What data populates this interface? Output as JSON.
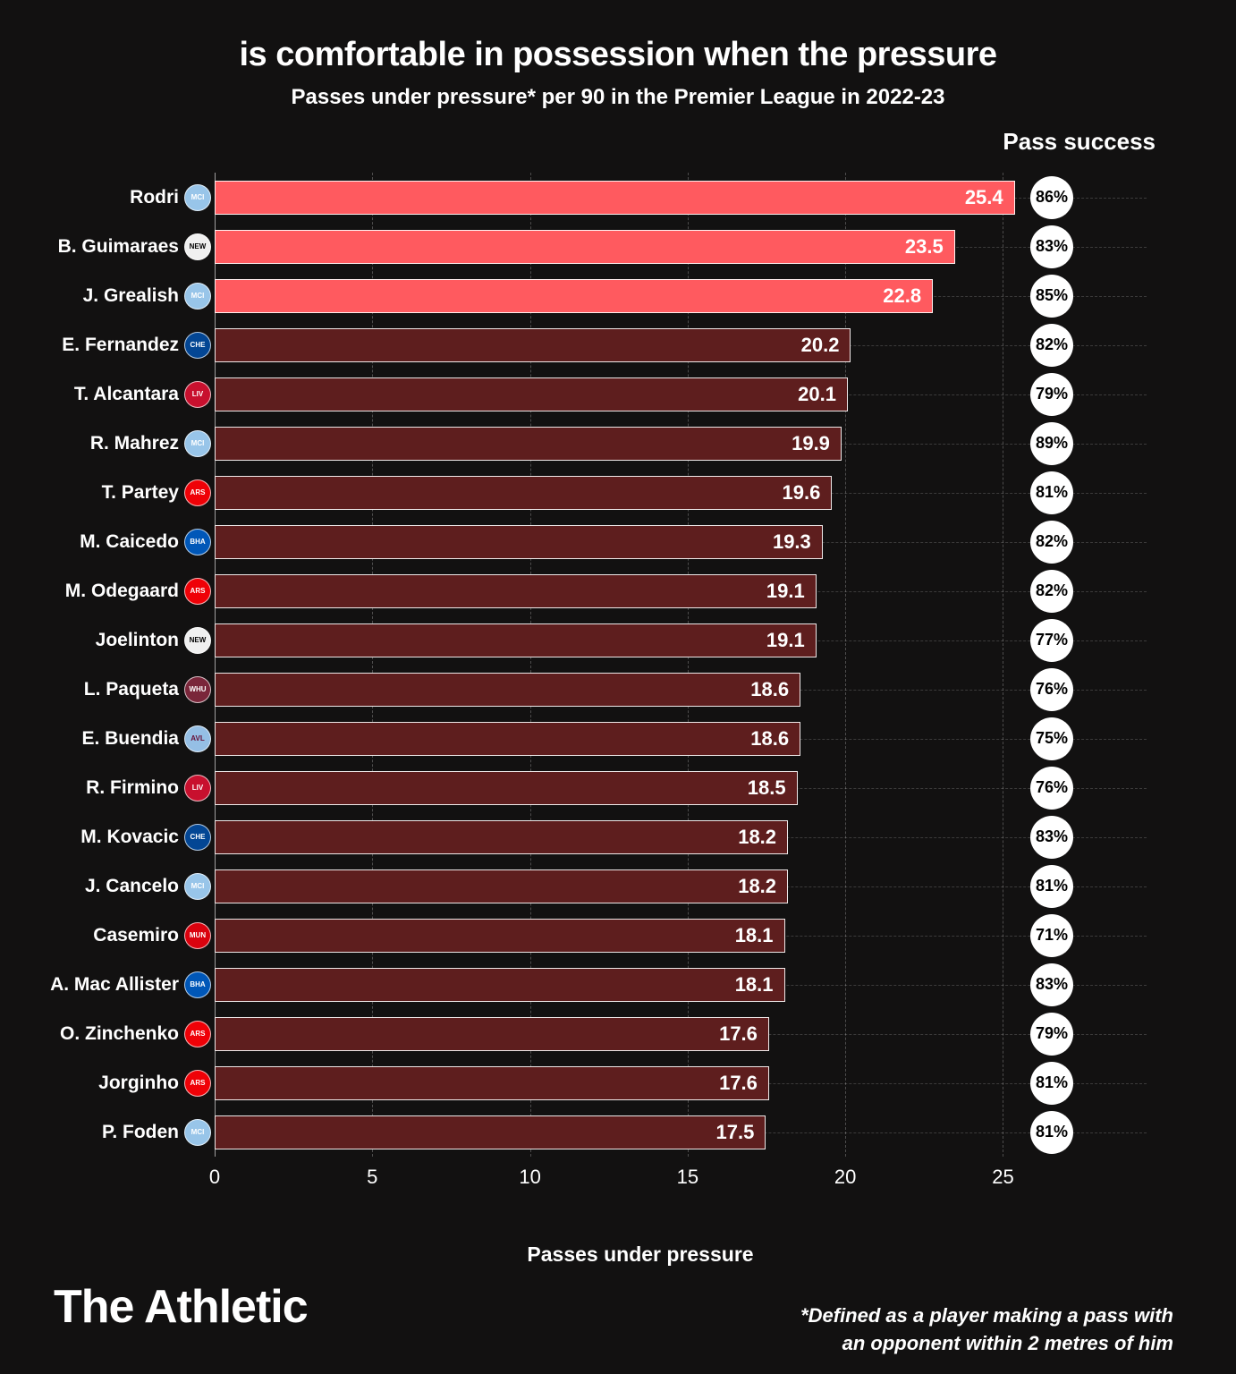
{
  "title": "is comfortable in possession when the pressure",
  "subtitle": "Passes under pressure* per 90 in the Premier League in 2022-23",
  "pass_success_header": "Pass success",
  "x_label": "Passes under pressure",
  "footnote_line1": "*Defined as a player making a pass with",
  "footnote_line2": "an opponent within 2 metres of him",
  "brand": "The Athletic",
  "chart": {
    "type": "bar-horizontal",
    "xlim": [
      0,
      27
    ],
    "xticks": [
      0,
      5,
      10,
      15,
      20,
      25
    ],
    "bar_border_color": "#ffffff",
    "background_color": "#121111",
    "grid_color": "rgba(255,255,255,0.25)",
    "highlight_color": "#ff5a5f",
    "normal_color": "#5e1e1e",
    "badge_bg": "#ffffff",
    "badge_text": "#000000",
    "title_fontsize": 38,
    "subtitle_fontsize": 24,
    "label_fontsize": 21,
    "value_fontsize": 22,
    "players": [
      {
        "name": "Rodri",
        "value": 25.4,
        "success": "86%",
        "highlight": true,
        "crest_bg": "#98c5e9",
        "crest_text": "MCI"
      },
      {
        "name": "B. Guimaraes",
        "value": 23.5,
        "success": "83%",
        "highlight": true,
        "crest_bg": "#f0f0f0",
        "crest_text": "NEW",
        "crest_fg": "#000"
      },
      {
        "name": "J. Grealish",
        "value": 22.8,
        "success": "85%",
        "highlight": true,
        "crest_bg": "#98c5e9",
        "crest_text": "MCI"
      },
      {
        "name": "E. Fernandez",
        "value": 20.2,
        "success": "82%",
        "highlight": false,
        "crest_bg": "#034694",
        "crest_text": "CHE"
      },
      {
        "name": "T. Alcantara",
        "value": 20.1,
        "success": "79%",
        "highlight": false,
        "crest_bg": "#c8102e",
        "crest_text": "LIV"
      },
      {
        "name": "R. Mahrez",
        "value": 19.9,
        "success": "89%",
        "highlight": false,
        "crest_bg": "#98c5e9",
        "crest_text": "MCI"
      },
      {
        "name": "T. Partey",
        "value": 19.6,
        "success": "81%",
        "highlight": false,
        "crest_bg": "#ef0107",
        "crest_text": "ARS"
      },
      {
        "name": "M. Caicedo",
        "value": 19.3,
        "success": "82%",
        "highlight": false,
        "crest_bg": "#0057b8",
        "crest_text": "BHA"
      },
      {
        "name": "M. Odegaard",
        "value": 19.1,
        "success": "82%",
        "highlight": false,
        "crest_bg": "#ef0107",
        "crest_text": "ARS"
      },
      {
        "name": "Joelinton",
        "value": 19.1,
        "success": "77%",
        "highlight": false,
        "crest_bg": "#f0f0f0",
        "crest_text": "NEW",
        "crest_fg": "#000"
      },
      {
        "name": "L. Paqueta",
        "value": 18.6,
        "success": "76%",
        "highlight": false,
        "crest_bg": "#7a263a",
        "crest_text": "WHU"
      },
      {
        "name": "E. Buendia",
        "value": 18.6,
        "success": "75%",
        "highlight": false,
        "crest_bg": "#95bfe5",
        "crest_text": "AVL",
        "crest_fg": "#670e36"
      },
      {
        "name": "R. Firmino",
        "value": 18.5,
        "success": "76%",
        "highlight": false,
        "crest_bg": "#c8102e",
        "crest_text": "LIV"
      },
      {
        "name": "M. Kovacic",
        "value": 18.2,
        "success": "83%",
        "highlight": false,
        "crest_bg": "#034694",
        "crest_text": "CHE"
      },
      {
        "name": "J. Cancelo",
        "value": 18.2,
        "success": "81%",
        "highlight": false,
        "crest_bg": "#98c5e9",
        "crest_text": "MCI"
      },
      {
        "name": "Casemiro",
        "value": 18.1,
        "success": "71%",
        "highlight": false,
        "crest_bg": "#da020e",
        "crest_text": "MUN"
      },
      {
        "name": "A. Mac Allister",
        "value": 18.1,
        "success": "83%",
        "highlight": false,
        "crest_bg": "#0057b8",
        "crest_text": "BHA"
      },
      {
        "name": "O. Zinchenko",
        "value": 17.6,
        "success": "79%",
        "highlight": false,
        "crest_bg": "#ef0107",
        "crest_text": "ARS"
      },
      {
        "name": "Jorginho",
        "value": 17.6,
        "success": "81%",
        "highlight": false,
        "crest_bg": "#ef0107",
        "crest_text": "ARS"
      },
      {
        "name": "P. Foden",
        "value": 17.5,
        "success": "81%",
        "highlight": false,
        "crest_bg": "#98c5e9",
        "crest_text": "MCI"
      }
    ]
  }
}
